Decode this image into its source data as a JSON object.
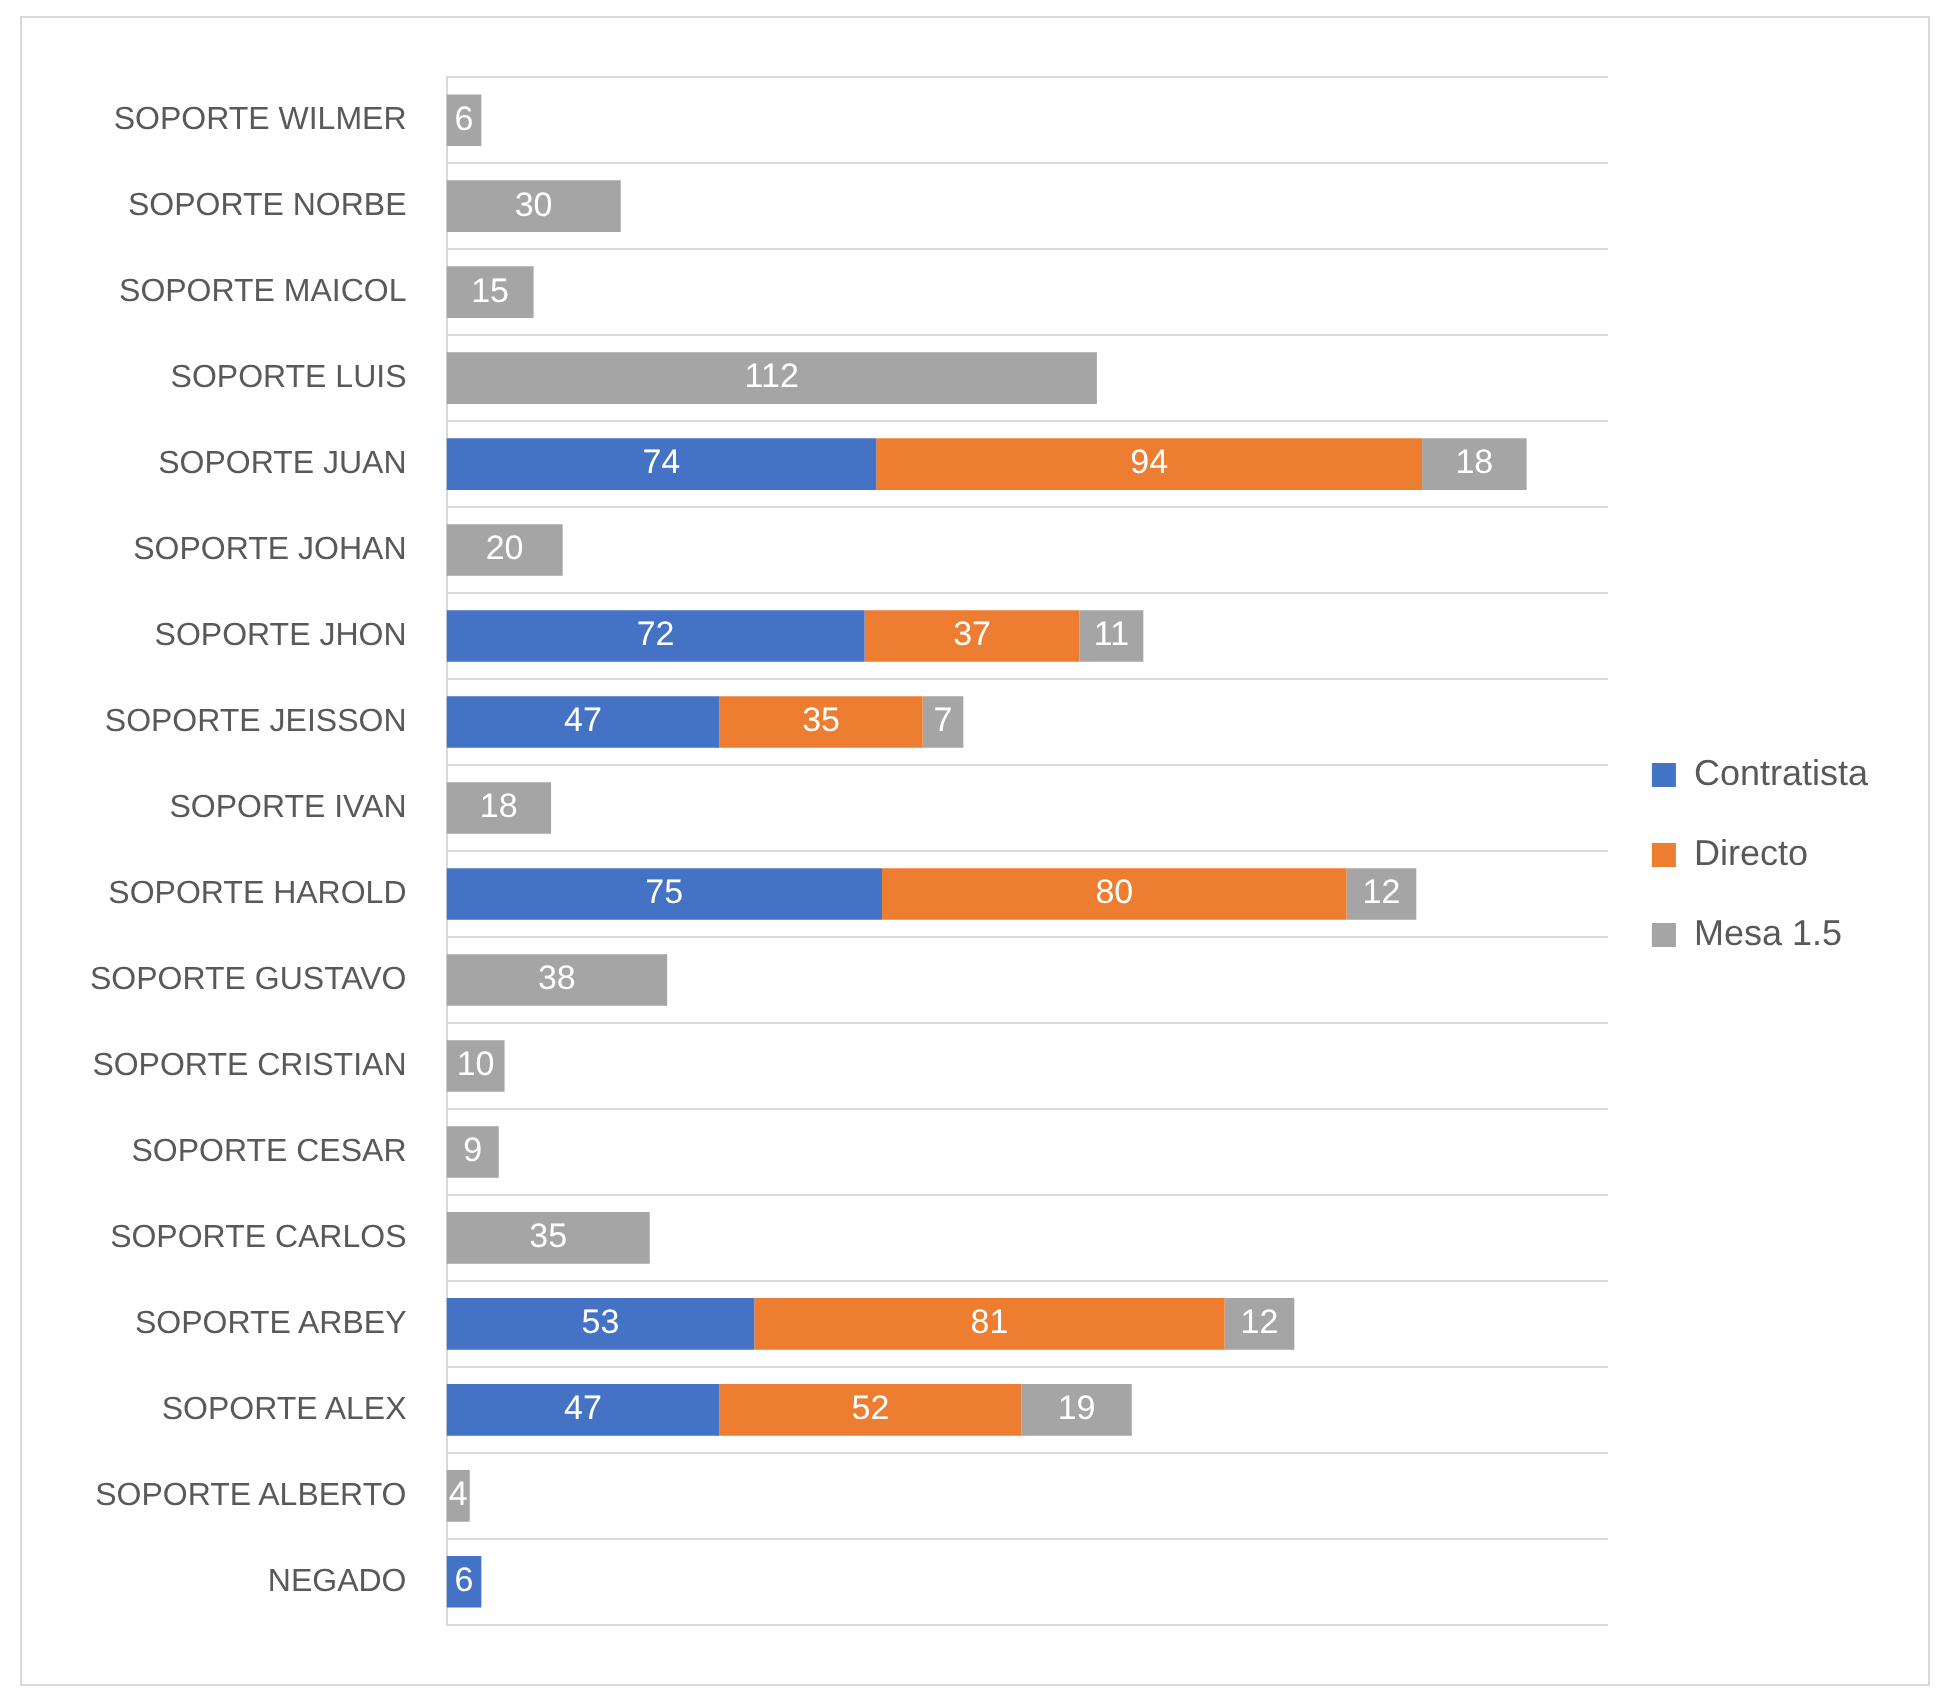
{
  "chart_data": {
    "type": "bar",
    "orientation": "horizontal",
    "stacked": true,
    "data_labels": true,
    "grid": "y",
    "legend": "right",
    "tick_labels": "y",
    "xlim": [
      0,
      200
    ],
    "categories": [
      "SOPORTE WILMER",
      "SOPORTE NORBE",
      "SOPORTE MAICOL",
      "SOPORTE LUIS",
      "SOPORTE JUAN",
      "SOPORTE JOHAN",
      "SOPORTE JHON",
      "SOPORTE JEISSON",
      "SOPORTE IVAN",
      "SOPORTE HAROLD",
      "SOPORTE GUSTAVO",
      "SOPORTE CRISTIAN",
      "SOPORTE CESAR",
      "SOPORTE CARLOS",
      "SOPORTE ARBEY",
      "SOPORTE ALEX",
      "SOPORTE ALBERTO",
      "NEGADO"
    ],
    "series": [
      {
        "name": "Contratista",
        "color": "#4472c4",
        "values": [
          null,
          null,
          null,
          null,
          74,
          null,
          72,
          47,
          null,
          75,
          null,
          null,
          null,
          null,
          53,
          47,
          null,
          6
        ]
      },
      {
        "name": "Directo",
        "color": "#ed7d31",
        "values": [
          null,
          null,
          null,
          null,
          94,
          null,
          37,
          35,
          null,
          80,
          null,
          null,
          null,
          null,
          81,
          52,
          null,
          null
        ]
      },
      {
        "name": "Mesa 1.5",
        "color": "#a5a5a5",
        "values": [
          6,
          30,
          15,
          112,
          18,
          20,
          11,
          7,
          18,
          12,
          38,
          10,
          9,
          35,
          12,
          19,
          4,
          null
        ]
      }
    ]
  }
}
